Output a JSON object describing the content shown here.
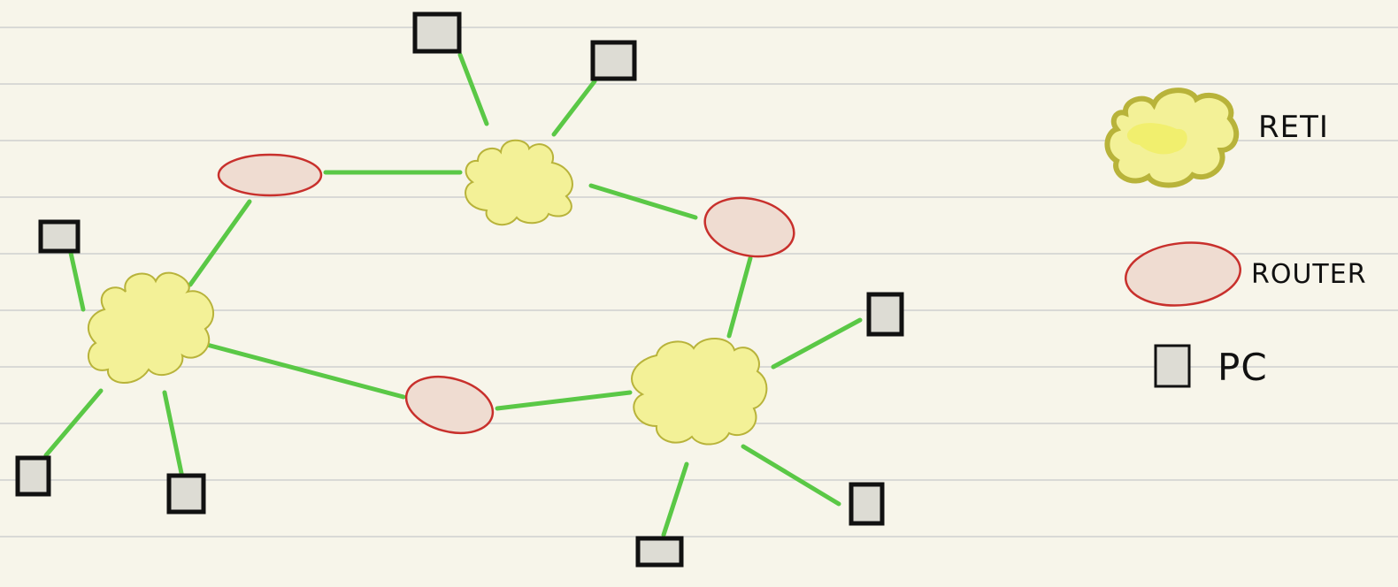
{
  "legend": {
    "network_label": "RETI",
    "router_label": "ROUTER",
    "pc_label": "PC"
  },
  "colors": {
    "paper": "#f7f5ea",
    "rule_line": "#d9d9d6",
    "link": "#5ac846",
    "cloud_fill": "#f3f197",
    "cloud_stroke": "#b8b33a",
    "router_fill": "#efdcd1",
    "router_stroke": "#c8302c",
    "pc_fill": "#dddcd4",
    "pc_stroke": "#111111"
  },
  "diagram": {
    "networks": [
      "network-1",
      "network-2",
      "network-3"
    ],
    "routers": [
      "router-1",
      "router-2",
      "router-3"
    ],
    "pcs": [
      "pc-1",
      "pc-2",
      "pc-3",
      "pc-4",
      "pc-5",
      "pc-6",
      "pc-7",
      "pc-8",
      "pc-9"
    ]
  }
}
